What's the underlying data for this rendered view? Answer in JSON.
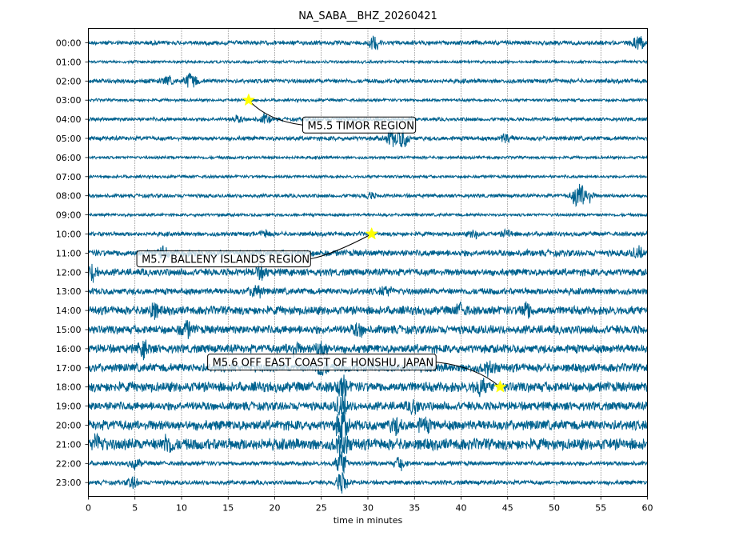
{
  "chart_data": {
    "type": "line",
    "title": "NA_SABA__BHZ_20260421",
    "xlabel": "time in minutes",
    "ylabel": "",
    "xlim": [
      0,
      60
    ],
    "xticks": [
      0,
      5,
      10,
      15,
      20,
      25,
      30,
      35,
      40,
      45,
      50,
      55,
      60
    ],
    "grid": "vertical dotted",
    "trace_color": "#00628f",
    "rows": [
      {
        "label": "00:00",
        "amp": 3,
        "bursts": [
          [
            30.7,
            9
          ],
          [
            59.1,
            11
          ]
        ]
      },
      {
        "label": "01:00",
        "amp": 2,
        "bursts": []
      },
      {
        "label": "02:00",
        "amp": 3,
        "bursts": [
          [
            8.5,
            5
          ],
          [
            11.0,
            12
          ]
        ]
      },
      {
        "label": "03:00",
        "amp": 2,
        "bursts": []
      },
      {
        "label": "04:00",
        "amp": 2.5,
        "bursts": [
          [
            16,
            4
          ],
          [
            19,
            6
          ]
        ]
      },
      {
        "label": "05:00",
        "amp": 3,
        "bursts": [
          [
            32.5,
            10
          ],
          [
            33.7,
            12
          ],
          [
            44.8,
            6
          ]
        ]
      },
      {
        "label": "06:00",
        "amp": 2,
        "bursts": []
      },
      {
        "label": "07:00",
        "amp": 2,
        "bursts": []
      },
      {
        "label": "08:00",
        "amp": 2.5,
        "bursts": [
          [
            30.2,
            4
          ],
          [
            52.5,
            16
          ],
          [
            53.5,
            12
          ]
        ]
      },
      {
        "label": "09:00",
        "amp": 2,
        "bursts": []
      },
      {
        "label": "10:00",
        "amp": 3,
        "bursts": [
          [
            19,
            4
          ],
          [
            41.5,
            5
          ],
          [
            45,
            5
          ]
        ]
      },
      {
        "label": "11:00",
        "amp": 4.5,
        "bursts": [
          [
            8,
            6
          ],
          [
            59,
            6
          ]
        ]
      },
      {
        "label": "12:00",
        "amp": 5,
        "bursts": [
          [
            0.5,
            10
          ],
          [
            18.5,
            8
          ]
        ]
      },
      {
        "label": "13:00",
        "amp": 4.5,
        "bursts": [
          [
            18,
            9
          ],
          [
            32,
            6
          ]
        ]
      },
      {
        "label": "14:00",
        "amp": 6,
        "bursts": [
          [
            7,
            9
          ],
          [
            40,
            7
          ],
          [
            47,
            10
          ]
        ]
      },
      {
        "label": "15:00",
        "amp": 6,
        "bursts": [
          [
            10.5,
            10
          ],
          [
            29,
            7
          ]
        ]
      },
      {
        "label": "16:00",
        "amp": 6,
        "bursts": [
          [
            6,
            9
          ],
          [
            22,
            8
          ],
          [
            25,
            10
          ]
        ]
      },
      {
        "label": "17:00",
        "amp": 6,
        "bursts": [
          [
            25,
            9
          ],
          [
            43,
            7
          ]
        ]
      },
      {
        "label": "18:00",
        "amp": 7,
        "bursts": [
          [
            27.2,
            12
          ],
          [
            42,
            9
          ]
        ]
      },
      {
        "label": "19:00",
        "amp": 6,
        "bursts": [
          [
            27.2,
            14
          ],
          [
            35,
            8
          ]
        ]
      },
      {
        "label": "20:00",
        "amp": 7,
        "bursts": [
          [
            27.2,
            18
          ],
          [
            33,
            9
          ],
          [
            36,
            8
          ]
        ]
      },
      {
        "label": "21:00",
        "amp": 8,
        "bursts": [
          [
            1,
            11
          ],
          [
            8.5,
            10
          ],
          [
            27.2,
            14
          ]
        ]
      },
      {
        "label": "22:00",
        "amp": 3,
        "bursts": [
          [
            5,
            6
          ],
          [
            27.2,
            16
          ],
          [
            33.5,
            8
          ]
        ]
      },
      {
        "label": "23:00",
        "amp": 3,
        "bursts": [
          [
            4.8,
            7
          ],
          [
            27.2,
            14
          ]
        ]
      }
    ],
    "annotations": [
      {
        "text": "M5.5 TIMOR REGION",
        "row": 3,
        "minute": 17.2,
        "label_minute": 23,
        "label_row": 4.3
      },
      {
        "text": "M5.7 BALLENY ISLANDS REGION",
        "row": 10,
        "minute": 30.4,
        "label_minute": 5.2,
        "label_row": 11.3
      },
      {
        "text": "M5.6 OFF EAST COAST OF HONSHU, JAPAN",
        "row": 18,
        "minute": 44.2,
        "label_minute": 12.8,
        "label_row": 16.7
      }
    ],
    "marker_color": "#ffff00"
  }
}
